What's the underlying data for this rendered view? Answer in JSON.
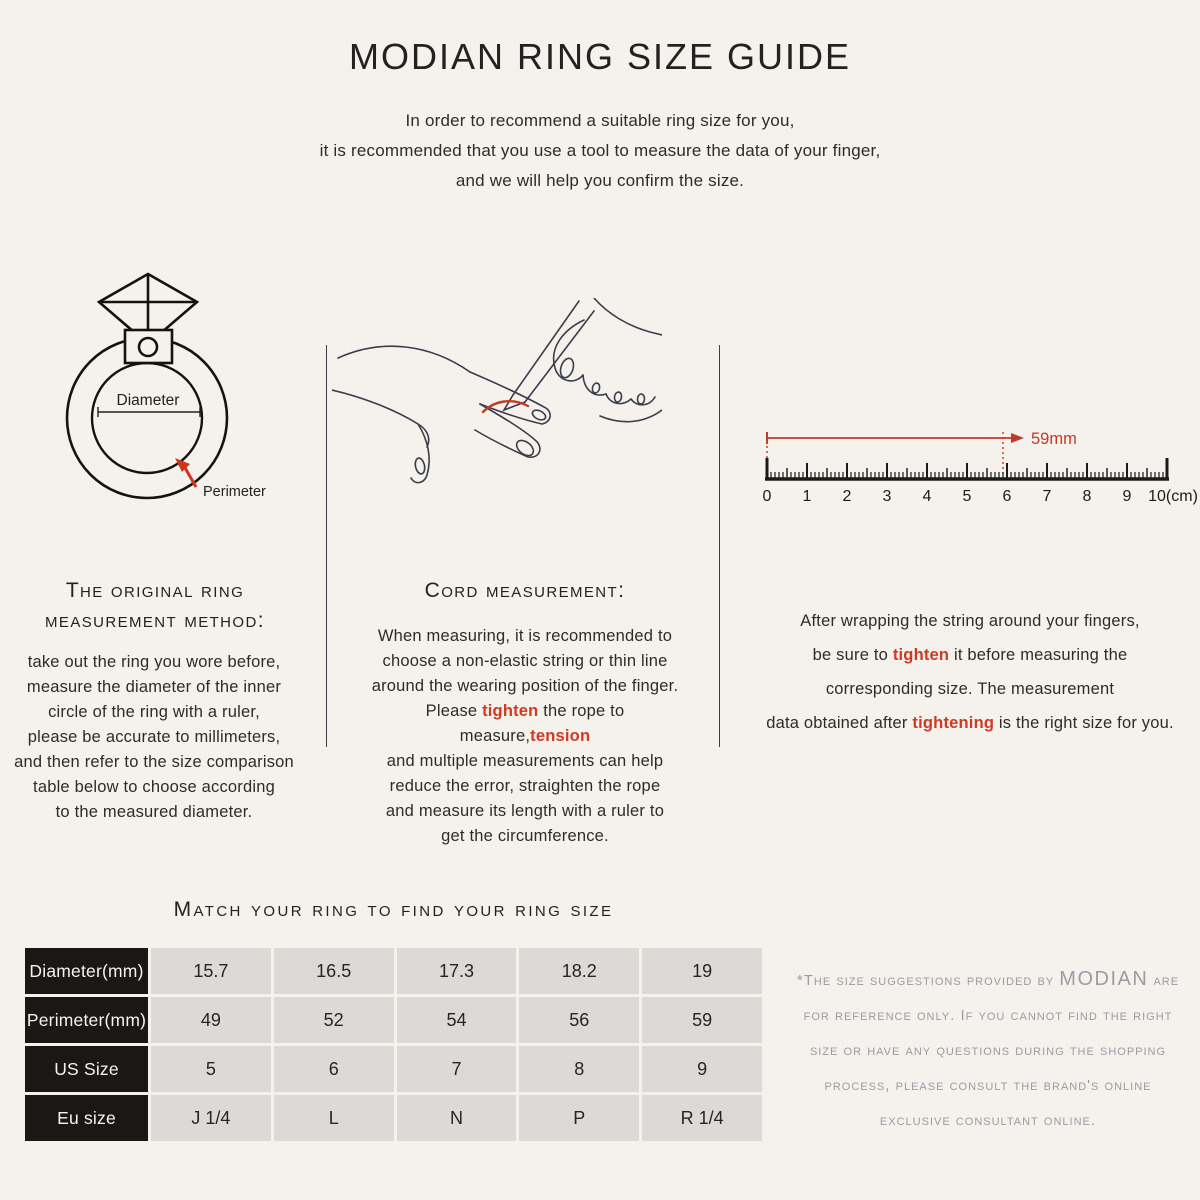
{
  "header": {
    "title": "MODIAN RING SIZE GUIDE",
    "intro_lines": [
      "In order to recommend a suitable ring size for you,",
      "it is recommended that you use a tool to measure the data of your finger,",
      "and we will help you confirm the size."
    ]
  },
  "diagrams": {
    "ring": {
      "diameter_label": "Diameter",
      "perimeter_label": "Perimeter"
    },
    "ruler": {
      "arrow_label": "59mm",
      "tick_labels": [
        "0",
        "1",
        "2",
        "3",
        "4",
        "5",
        "6",
        "7",
        "8",
        "9",
        "10(cm)"
      ]
    }
  },
  "sections": {
    "left": {
      "heading_lines": [
        "The original ring",
        "measurement method:"
      ],
      "body_lines": [
        "take out the ring you wore before,",
        "measure the diameter of the inner",
        "circle of the ring with a ruler,",
        "please be accurate to millimeters,",
        "and then refer to the size comparison",
        "table below to choose according",
        "to the measured diameter."
      ]
    },
    "middle": {
      "heading": "Cord measurement:",
      "body_lines": [
        "When measuring, it is recommended to",
        "choose a non-elastic string or thin line",
        "around the wearing position of the finger.",
        [
          "Please ",
          {
            "t": "tighten",
            "style": "red"
          },
          " the rope to measure,",
          {
            "t": "tension",
            "style": "red"
          }
        ],
        "and multiple measurements can help",
        "reduce the error, straighten the rope",
        "and measure its length with a ruler to",
        "get the circumference."
      ]
    },
    "right": {
      "body_lines": [
        "After wrapping the string around your fingers,",
        [
          "be sure to ",
          {
            "t": "tighten",
            "style": "red"
          },
          " it before measuring the"
        ],
        "corresponding size. The measurement",
        [
          "data obtained after ",
          {
            "t": "tightening",
            "style": "red"
          },
          " is the right size for you."
        ]
      ]
    }
  },
  "size_table": {
    "heading": "Match your ring to find your ring size",
    "row_headers": [
      "Diameter(mm)",
      "Perimeter(mm)",
      "US Size",
      "Eu size"
    ],
    "rows": [
      [
        "15.7",
        "16.5",
        "17.3",
        "18.2",
        "19"
      ],
      [
        "49",
        "52",
        "54",
        "56",
        "59"
      ],
      [
        "5",
        "6",
        "7",
        "8",
        "9"
      ],
      [
        "J 1/4",
        "L",
        "N",
        "P",
        "R 1/4"
      ]
    ]
  },
  "footnote": {
    "lines": [
      [
        "*The size suggestions provided by ",
        {
          "t": "MODIAN",
          "style": "brand"
        },
        " are"
      ],
      "for reference only. If you cannot find the right",
      "size or have any questions during the shopping",
      "process, please consult the brand's online",
      "exclusive consultant online."
    ]
  },
  "colors": {
    "background": "#f5f2ed",
    "ink": "#2d2c29",
    "accent_red": "#cf3a20",
    "note_gray": "#9c9ba2",
    "table_header_bg": "#1b1714",
    "table_cell_bg": "#dcdad6"
  }
}
